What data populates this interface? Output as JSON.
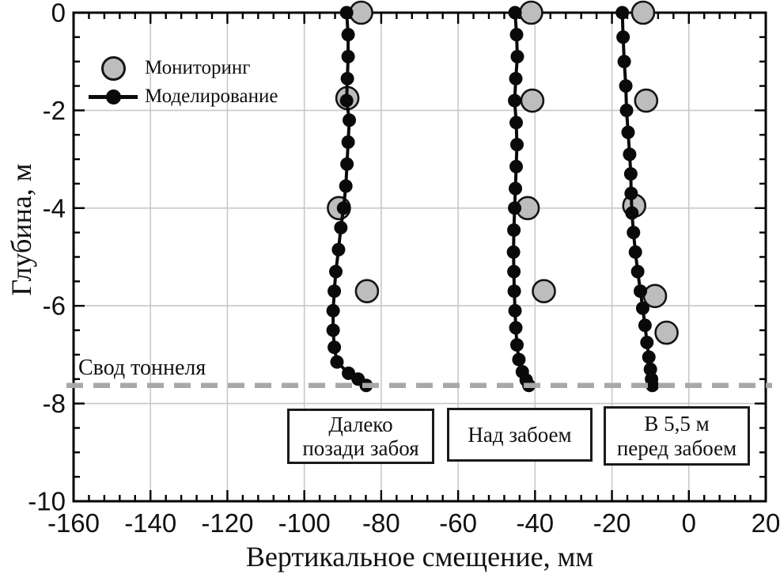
{
  "chart_data": {
    "type": "scatter",
    "title": "",
    "xlabel": "Вертикальное смещение, мм",
    "ylabel": "Глубина, м",
    "xlim": [
      -160,
      20
    ],
    "ylim": [
      -10,
      0
    ],
    "x_ticks": [
      -160,
      -140,
      -120,
      -100,
      -80,
      -60,
      -40,
      -20,
      0,
      20
    ],
    "y_ticks": [
      0,
      -2,
      -4,
      -6,
      -8,
      -10
    ],
    "x_minor_step": 4,
    "y_minor_step": 0.5,
    "grid": "major",
    "legend": {
      "position": "upper-left-inside",
      "entries": [
        {
          "name": "Мониторинг",
          "marker": "gray-filled-circle"
        },
        {
          "name": "Моделирование",
          "marker": "black-line-with-dot"
        }
      ]
    },
    "tunnel_crown": {
      "label": "Свод тоннеля",
      "depth_m": -7.63
    },
    "profiles": [
      {
        "label": "Далеко\nпозади забоя",
        "model": [
          [
            -89.0,
            0
          ],
          [
            -88.6,
            -0.45
          ],
          [
            -88.6,
            -0.9
          ],
          [
            -88.8,
            -1.35
          ],
          [
            -89.0,
            -1.8
          ],
          [
            -88.3,
            -2.2
          ],
          [
            -88.6,
            -2.65
          ],
          [
            -88.9,
            -3.1
          ],
          [
            -89.2,
            -3.55
          ],
          [
            -89.8,
            -4.0
          ],
          [
            -90.5,
            -4.4
          ],
          [
            -91.1,
            -4.85
          ],
          [
            -91.8,
            -5.3
          ],
          [
            -92.2,
            -5.7
          ],
          [
            -92.5,
            -6.1
          ],
          [
            -92.5,
            -6.5
          ],
          [
            -92.2,
            -6.85
          ],
          [
            -91.5,
            -7.15
          ],
          [
            -88.5,
            -7.38
          ],
          [
            -86.0,
            -7.5
          ],
          [
            -83.9,
            -7.63
          ]
        ],
        "monitoring": [
          [
            -85.2,
            0
          ],
          [
            -88.8,
            -1.75
          ],
          [
            -91.0,
            -4.0
          ],
          [
            -83.7,
            -5.7
          ]
        ]
      },
      {
        "label": "Над забоем",
        "model": [
          [
            -45.2,
            0
          ],
          [
            -44.8,
            -0.45
          ],
          [
            -44.6,
            -0.9
          ],
          [
            -45.0,
            -1.35
          ],
          [
            -45.3,
            -1.8
          ],
          [
            -44.9,
            -2.25
          ],
          [
            -44.7,
            -2.7
          ],
          [
            -44.9,
            -3.15
          ],
          [
            -45.1,
            -3.6
          ],
          [
            -45.3,
            -4.0
          ],
          [
            -45.5,
            -4.45
          ],
          [
            -45.6,
            -4.9
          ],
          [
            -45.5,
            -5.3
          ],
          [
            -45.4,
            -5.7
          ],
          [
            -45.2,
            -6.1
          ],
          [
            -45.0,
            -6.45
          ],
          [
            -44.7,
            -6.8
          ],
          [
            -44.2,
            -7.1
          ],
          [
            -43.3,
            -7.35
          ],
          [
            -42.3,
            -7.52
          ],
          [
            -41.6,
            -7.63
          ]
        ],
        "monitoring": [
          [
            -41.0,
            0
          ],
          [
            -40.7,
            -1.8
          ],
          [
            -41.9,
            -4.0
          ],
          [
            -37.7,
            -5.7
          ]
        ]
      },
      {
        "label": "В 5,5 м\nперед забоем",
        "model": [
          [
            -17.3,
            0
          ],
          [
            -17.1,
            -0.5
          ],
          [
            -16.8,
            -1.0
          ],
          [
            -16.4,
            -1.5
          ],
          [
            -16.2,
            -2.0
          ],
          [
            -15.8,
            -2.45
          ],
          [
            -15.4,
            -2.9
          ],
          [
            -15.1,
            -3.3
          ],
          [
            -15.0,
            -3.7
          ],
          [
            -14.8,
            -4.1
          ],
          [
            -14.4,
            -4.5
          ],
          [
            -13.9,
            -4.9
          ],
          [
            -13.3,
            -5.3
          ],
          [
            -12.6,
            -5.7
          ],
          [
            -12.0,
            -6.05
          ],
          [
            -11.4,
            -6.4
          ],
          [
            -10.9,
            -6.75
          ],
          [
            -10.4,
            -7.05
          ],
          [
            -10.0,
            -7.3
          ],
          [
            -9.7,
            -7.5
          ],
          [
            -9.5,
            -7.63
          ]
        ],
        "monitoring": [
          [
            -11.9,
            0
          ],
          [
            -11.1,
            -1.8
          ],
          [
            -14.2,
            -3.95
          ],
          [
            -8.8,
            -5.8
          ],
          [
            -5.8,
            -6.55
          ]
        ]
      }
    ],
    "colors": {
      "monitoring_fill": "#bdbdbd",
      "monitoring_stroke": "#141414",
      "model": "#0a0a0a",
      "gridline": "#c8c8c8",
      "crown_line": "#a8a8a8",
      "box_border": "#1a1a1a",
      "text": "#111111"
    }
  }
}
